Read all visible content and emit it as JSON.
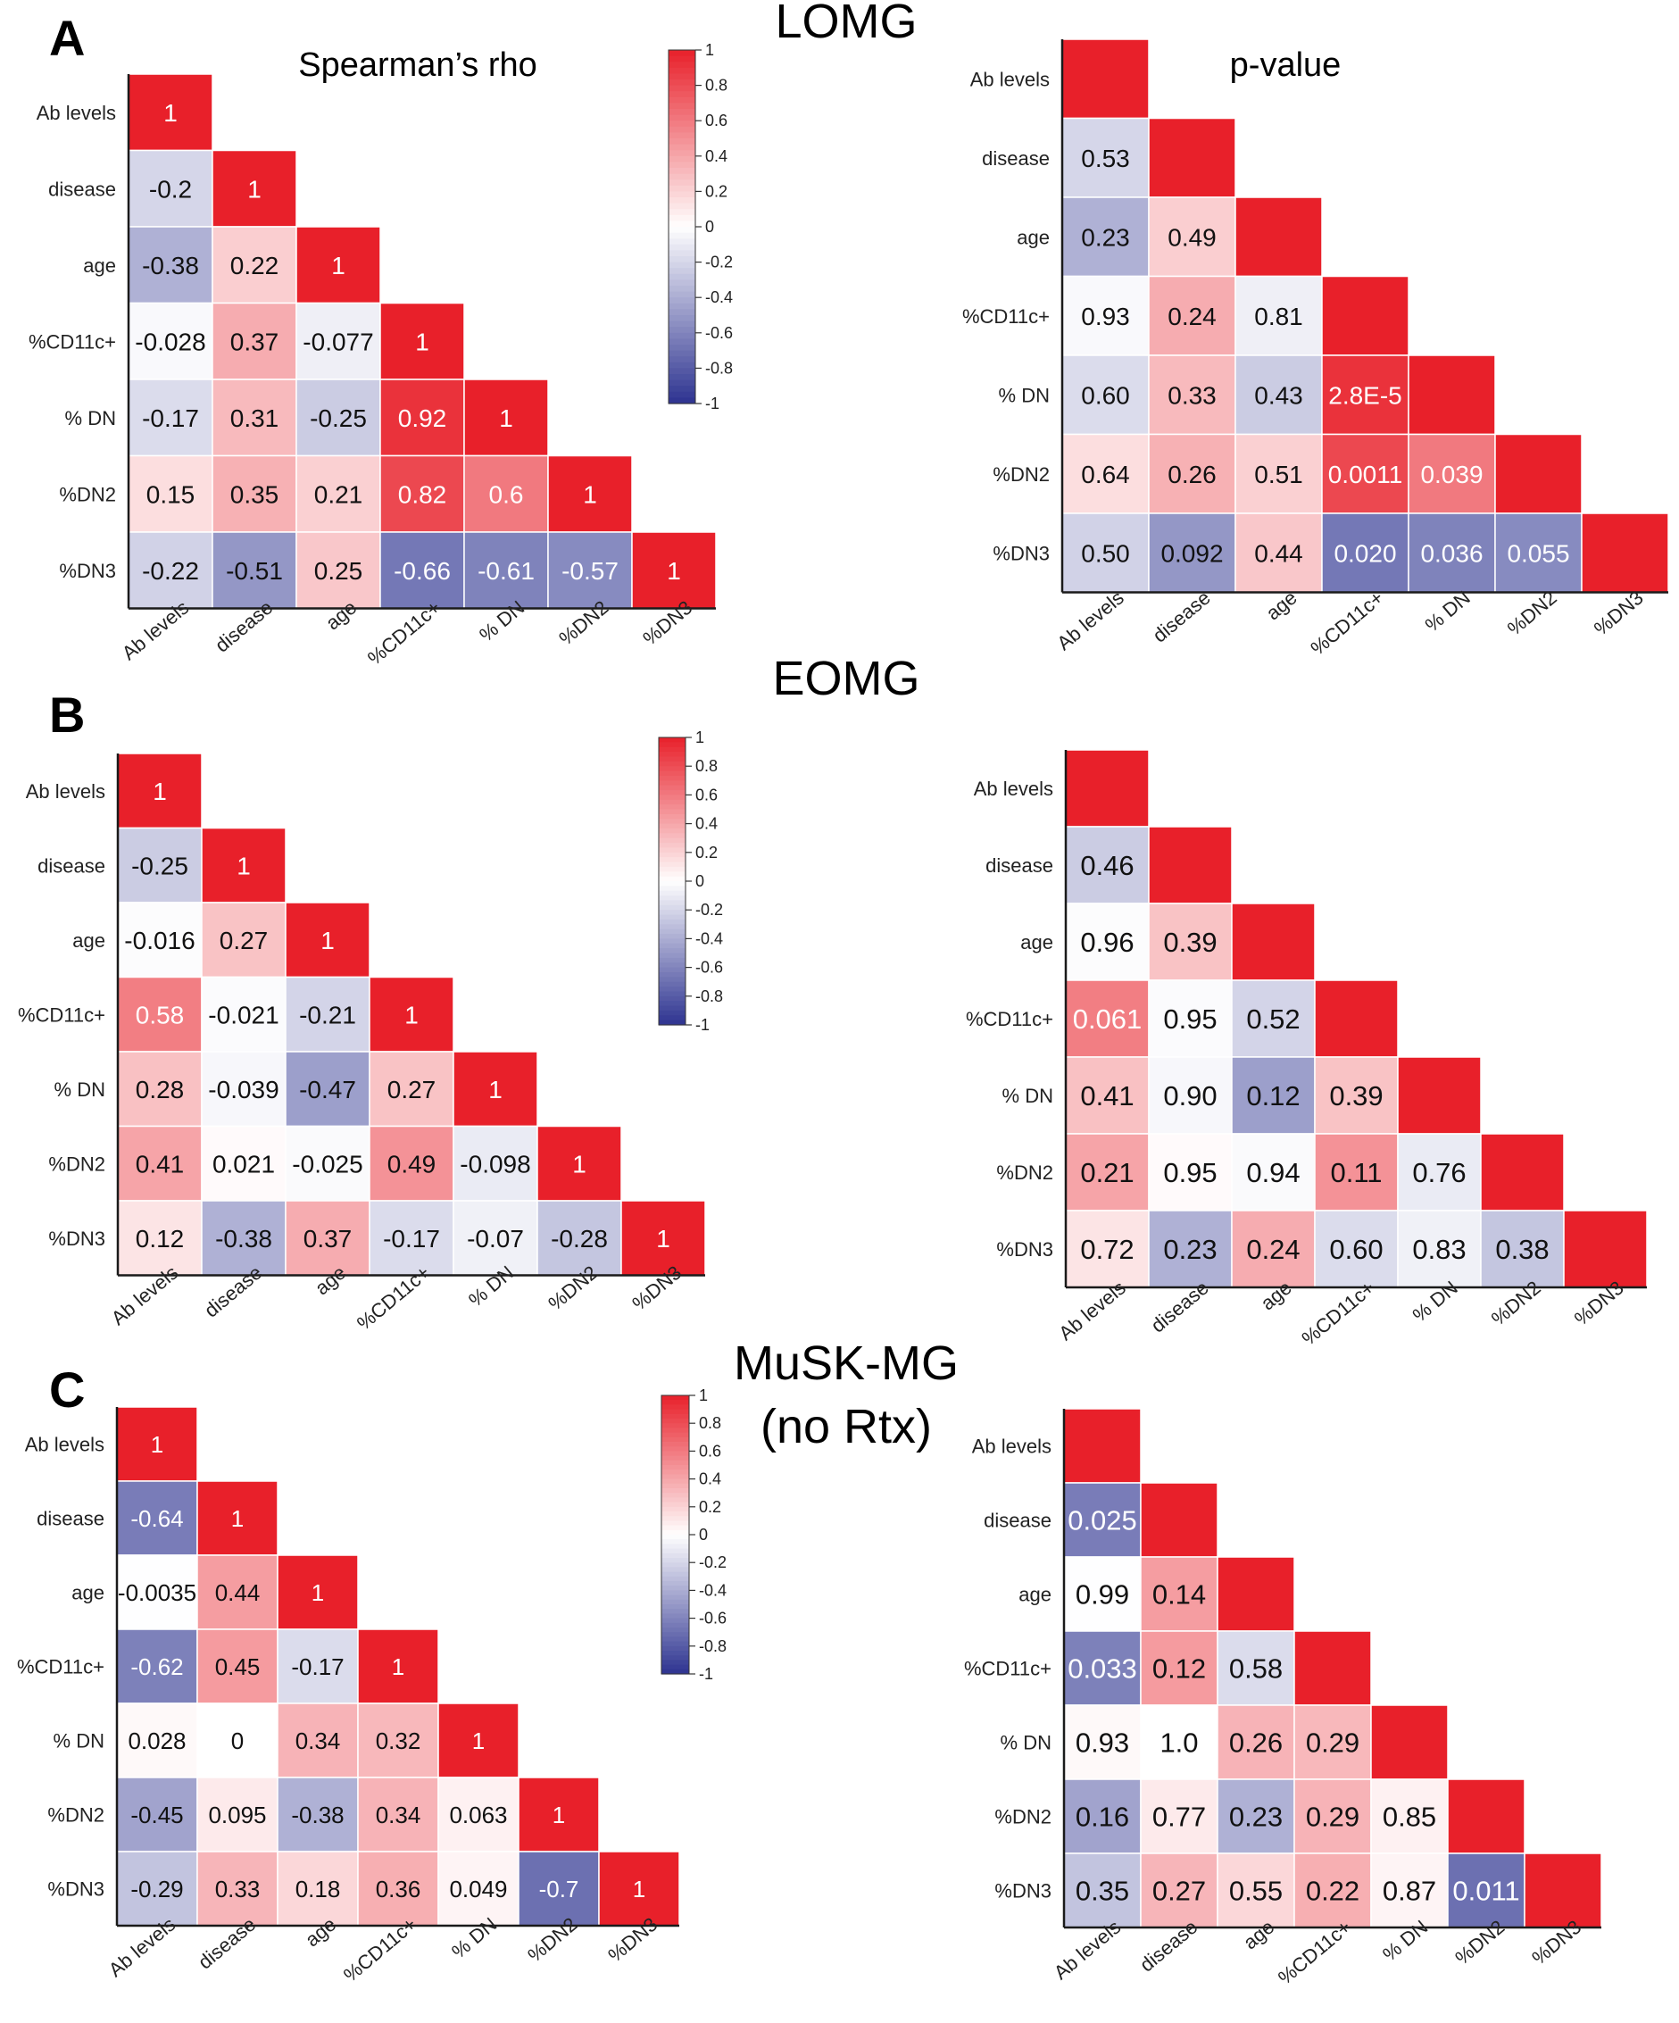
{
  "colors": {
    "positive": "#e8202a",
    "negative": "#2d3390",
    "neutral": "#ffffff",
    "axis": "#1a1a1a",
    "cell_border": "#ffffff"
  },
  "figure": {
    "panel_letters": [
      "A",
      "B",
      "C"
    ],
    "group_titles": [
      "LOMG",
      "EOMG",
      "MuSK-MG",
      "(no Rtx)"
    ],
    "rho_title": "Spearman’s rho",
    "pvalue_title": "p-value"
  },
  "chart_data": [
    {
      "type": "heatmap",
      "panel": "A",
      "group": "LOMG",
      "metric": "Spearman's rho",
      "title": "Spearman’s rho",
      "row_labels": [
        "Ab levels",
        "disease",
        "age",
        "%CD11c+",
        "% DN",
        "%DN2",
        "%DN3"
      ],
      "col_labels": [
        "Ab levels",
        "disease",
        "age",
        "%CD11c+",
        "% DN",
        "%DN2",
        "%DN3"
      ],
      "values": [
        [
          1
        ],
        [
          -0.2,
          1
        ],
        [
          -0.38,
          0.22,
          1
        ],
        [
          -0.028,
          0.37,
          -0.077,
          1
        ],
        [
          -0.17,
          0.31,
          -0.25,
          0.92,
          1
        ],
        [
          0.15,
          0.35,
          0.21,
          0.82,
          0.6,
          1
        ],
        [
          -0.22,
          -0.51,
          0.25,
          -0.66,
          -0.61,
          -0.57,
          1
        ]
      ],
      "cell_labels": [
        [
          "1"
        ],
        [
          "-0.2",
          "1"
        ],
        [
          "-0.38",
          "0.22",
          "1"
        ],
        [
          "-0.028",
          "0.37",
          "-0.077",
          "1"
        ],
        [
          "-0.17",
          "0.31",
          "-0.25",
          "0.92",
          "1"
        ],
        [
          "0.15",
          "0.35",
          "0.21",
          "0.82",
          "0.6",
          "1"
        ],
        [
          "-0.22",
          "-0.51",
          "0.25",
          "-0.66",
          "-0.61",
          "-0.57",
          "1"
        ]
      ],
      "colorbar": {
        "ticks": [
          "1",
          "0.8",
          "0.6",
          "0.4",
          "0.2",
          "0",
          "-0.2",
          "-0.4",
          "-0.6",
          "-0.8",
          "-1"
        ],
        "range": [
          -1,
          1
        ]
      }
    },
    {
      "type": "heatmap",
      "panel": "A",
      "group": "LOMG",
      "metric": "p-value",
      "title": "p-value",
      "row_labels": [
        "Ab levels",
        "disease",
        "age",
        "%CD11c+",
        "% DN",
        "%DN2",
        "%DN3"
      ],
      "col_labels": [
        "Ab levels",
        "disease",
        "age",
        "%CD11c+",
        "% DN",
        "%DN2",
        "%DN3"
      ],
      "values": [
        [
          1
        ],
        [
          -0.2,
          1
        ],
        [
          -0.38,
          0.22,
          1
        ],
        [
          -0.028,
          0.37,
          -0.077,
          1
        ],
        [
          -0.17,
          0.31,
          -0.25,
          0.92,
          1
        ],
        [
          0.15,
          0.35,
          0.21,
          0.82,
          0.6,
          1
        ],
        [
          -0.22,
          -0.51,
          0.25,
          -0.66,
          -0.61,
          -0.57,
          1
        ]
      ],
      "cell_labels": [
        [
          ""
        ],
        [
          "0.53",
          ""
        ],
        [
          "0.23",
          "0.49",
          ""
        ],
        [
          "0.93",
          "0.24",
          "0.81",
          ""
        ],
        [
          "0.60",
          "0.33",
          "0.43",
          "2.8E-5",
          ""
        ],
        [
          "0.64",
          "0.26",
          "0.51",
          "0.0011",
          "0.039",
          ""
        ],
        [
          "0.50",
          "0.092",
          "0.44",
          "0.020",
          "0.036",
          "0.055",
          ""
        ]
      ]
    },
    {
      "type": "heatmap",
      "panel": "B",
      "group": "EOMG",
      "metric": "Spearman's rho",
      "title": "",
      "row_labels": [
        "Ab levels",
        "disease",
        "age",
        "%CD11c+",
        "% DN",
        "%DN2",
        "%DN3"
      ],
      "col_labels": [
        "Ab levels",
        "disease",
        "age",
        "%CD11c+",
        "% DN",
        "%DN2",
        "%DN3"
      ],
      "values": [
        [
          1
        ],
        [
          -0.25,
          1
        ],
        [
          -0.016,
          0.27,
          1
        ],
        [
          0.58,
          -0.021,
          -0.21,
          1
        ],
        [
          0.28,
          -0.039,
          -0.47,
          0.27,
          1
        ],
        [
          0.41,
          0.021,
          -0.025,
          0.49,
          -0.098,
          1
        ],
        [
          0.12,
          -0.38,
          0.37,
          -0.17,
          -0.07,
          -0.28,
          1
        ]
      ],
      "cell_labels": [
        [
          "1"
        ],
        [
          "-0.25",
          "1"
        ],
        [
          "-0.016",
          "0.27",
          "1"
        ],
        [
          "0.58",
          "-0.021",
          "-0.21",
          "1"
        ],
        [
          "0.28",
          "-0.039",
          "-0.47",
          "0.27",
          "1"
        ],
        [
          "0.41",
          "0.021",
          "-0.025",
          "0.49",
          "-0.098",
          "1"
        ],
        [
          "0.12",
          "-0.38",
          "0.37",
          "-0.17",
          "-0.07",
          "-0.28",
          "1"
        ]
      ],
      "colorbar": {
        "ticks": [
          "1",
          "0.8",
          "0.6",
          "0.4",
          "0.2",
          "0",
          "-0.2",
          "-0.4",
          "-0.6",
          "-0.8",
          "-1"
        ],
        "range": [
          -1,
          1
        ]
      }
    },
    {
      "type": "heatmap",
      "panel": "B",
      "group": "EOMG",
      "metric": "p-value",
      "title": "",
      "row_labels": [
        "Ab levels",
        "disease",
        "age",
        "%CD11c+",
        "% DN",
        "%DN2",
        "%DN3"
      ],
      "col_labels": [
        "Ab levels",
        "disease",
        "age",
        "%CD11c+",
        "% DN",
        "%DN2",
        "%DN3"
      ],
      "values": [
        [
          1
        ],
        [
          -0.25,
          1
        ],
        [
          -0.016,
          0.27,
          1
        ],
        [
          0.58,
          -0.021,
          -0.21,
          1
        ],
        [
          0.28,
          -0.039,
          -0.47,
          0.27,
          1
        ],
        [
          0.41,
          0.021,
          -0.025,
          0.49,
          -0.098,
          1
        ],
        [
          0.12,
          -0.38,
          0.37,
          -0.17,
          -0.07,
          -0.28,
          1
        ]
      ],
      "cell_labels": [
        [
          ""
        ],
        [
          "0.46",
          ""
        ],
        [
          "0.96",
          "0.39",
          ""
        ],
        [
          "0.061",
          "0.95",
          "0.52",
          ""
        ],
        [
          "0.41",
          "0.90",
          "0.12",
          "0.39",
          ""
        ],
        [
          "0.21",
          "0.95",
          "0.94",
          "0.11",
          "0.76",
          ""
        ],
        [
          "0.72",
          "0.23",
          "0.24",
          "0.60",
          "0.83",
          "0.38",
          ""
        ]
      ]
    },
    {
      "type": "heatmap",
      "panel": "C",
      "group": "MuSK-MG (no Rtx)",
      "metric": "Spearman's rho",
      "title": "",
      "row_labels": [
        "Ab levels",
        "disease",
        "age",
        "%CD11c+",
        "% DN",
        "%DN2",
        "%DN3"
      ],
      "col_labels": [
        "Ab levels",
        "disease",
        "age",
        "%CD11c+",
        "% DN",
        "%DN2",
        "%DN3"
      ],
      "values": [
        [
          1
        ],
        [
          -0.64,
          1
        ],
        [
          -0.0035,
          0.44,
          1
        ],
        [
          -0.62,
          0.45,
          -0.17,
          1
        ],
        [
          0.028,
          0,
          0.34,
          0.32,
          1
        ],
        [
          -0.45,
          0.095,
          -0.38,
          0.34,
          0.063,
          1
        ],
        [
          -0.29,
          0.33,
          0.18,
          0.36,
          0.049,
          -0.7,
          1
        ]
      ],
      "cell_labels": [
        [
          "1"
        ],
        [
          "-0.64",
          "1"
        ],
        [
          "-0.0035",
          "0.44",
          "1"
        ],
        [
          "-0.62",
          "0.45",
          "-0.17",
          "1"
        ],
        [
          "0.028",
          "0",
          "0.34",
          "0.32",
          "1"
        ],
        [
          "-0.45",
          "0.095",
          "-0.38",
          "0.34",
          "0.063",
          "1"
        ],
        [
          "-0.29",
          "0.33",
          "0.18",
          "0.36",
          "0.049",
          "-0.7",
          "1"
        ]
      ],
      "colorbar": {
        "ticks": [
          "1",
          "0.8",
          "0.6",
          "0.4",
          "0.2",
          "0",
          "-0.2",
          "-0.4",
          "-0.6",
          "-0.8",
          "-1"
        ],
        "range": [
          -1,
          1
        ]
      }
    },
    {
      "type": "heatmap",
      "panel": "C",
      "group": "MuSK-MG (no Rtx)",
      "metric": "p-value",
      "title": "",
      "row_labels": [
        "Ab levels",
        "disease",
        "age",
        "%CD11c+",
        "% DN",
        "%DN2",
        "%DN3"
      ],
      "col_labels": [
        "Ab levels",
        "disease",
        "age",
        "%CD11c+",
        "% DN",
        "%DN2",
        "%DN3"
      ],
      "values": [
        [
          1
        ],
        [
          -0.64,
          1
        ],
        [
          -0.0035,
          0.44,
          1
        ],
        [
          -0.62,
          0.45,
          -0.17,
          1
        ],
        [
          0.028,
          0,
          0.34,
          0.32,
          1
        ],
        [
          -0.45,
          0.095,
          -0.38,
          0.34,
          0.063,
          1
        ],
        [
          -0.29,
          0.33,
          0.18,
          0.36,
          0.049,
          -0.7,
          1
        ]
      ],
      "cell_labels": [
        [
          ""
        ],
        [
          "0.025",
          ""
        ],
        [
          "0.99",
          "0.14",
          ""
        ],
        [
          "0.033",
          "0.12",
          "0.58",
          ""
        ],
        [
          "0.93",
          "1.0",
          "0.26",
          "0.29",
          ""
        ],
        [
          "0.16",
          "0.77",
          "0.23",
          "0.29",
          "0.85",
          ""
        ],
        [
          "0.35",
          "0.27",
          "0.55",
          "0.22",
          "0.87",
          "0.011",
          ""
        ]
      ]
    }
  ]
}
